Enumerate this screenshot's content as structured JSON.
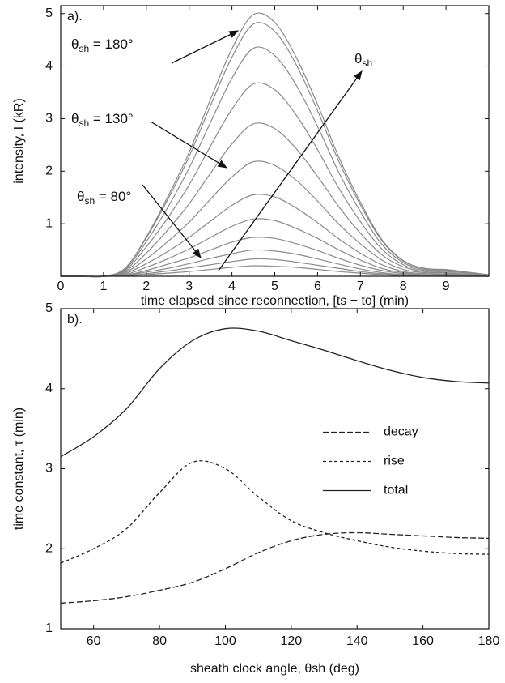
{
  "chart_data": [
    {
      "type": "line",
      "panel_label": "a).",
      "xlabel": "time elapsed since reconnection, [ts − to]    (min)",
      "ylabel": "intensity, I  (kR)",
      "x": [
        0,
        0.5,
        1,
        1.5,
        2,
        2.5,
        3,
        3.5,
        4,
        4.5,
        5,
        5.5,
        6,
        6.5,
        7,
        7.5,
        8,
        8.5,
        9,
        9.5,
        10
      ],
      "xlim": [
        0,
        10
      ],
      "xticks": [
        0,
        1,
        2,
        3,
        4,
        5,
        6,
        7,
        8,
        9
      ],
      "ylim": [
        0,
        5.15
      ],
      "yticks": [
        1,
        2,
        3,
        4,
        5
      ],
      "annotations": [
        {
          "symbol": "θ",
          "subscript": "sh",
          "text": " = 180°"
        },
        {
          "symbol": "θ",
          "subscript": "sh",
          "text": " = 130°"
        },
        {
          "symbol": "θ",
          "subscript": "sh",
          "text": " = 80°"
        },
        {
          "symbol": "θ",
          "subscript": "sh"
        }
      ],
      "series": [
        {
          "color": "#8a8a8a",
          "values": [
            0,
            0,
            0,
            0.15,
            0.75,
            1.51,
            2.36,
            3.37,
            4.33,
            4.98,
            4.83,
            4.17,
            3.27,
            2.26,
            1.41,
            0.7,
            0.3,
            0.15,
            0.13,
            0.08,
            0.03
          ]
        },
        {
          "color": "#8a8a8a",
          "values": [
            0,
            0,
            0,
            0.15,
            0.73,
            1.46,
            2.28,
            3.25,
            4.17,
            4.8,
            4.66,
            4.03,
            3.15,
            2.18,
            1.36,
            0.68,
            0.29,
            0.15,
            0.12,
            0.07,
            0.02
          ]
        },
        {
          "color": "#8a8a8a",
          "values": [
            0,
            0,
            0,
            0.13,
            0.66,
            1.31,
            2.06,
            2.93,
            3.77,
            4.34,
            4.2,
            3.64,
            2.85,
            1.97,
            1.23,
            0.61,
            0.26,
            0.13,
            0.11,
            0.07,
            0.02
          ]
        },
        {
          "color": "#8a8a8a",
          "values": [
            0,
            0,
            0,
            0.11,
            0.56,
            1.11,
            1.74,
            2.48,
            3.18,
            3.66,
            3.55,
            3.07,
            2.41,
            1.67,
            1.04,
            0.52,
            0.22,
            0.11,
            0.09,
            0.06,
            0.02
          ]
        },
        {
          "color": "#8a8a8a",
          "values": [
            0,
            0,
            0,
            0.09,
            0.44,
            0.88,
            1.38,
            1.96,
            2.52,
            2.9,
            2.81,
            2.43,
            1.9,
            1.32,
            0.82,
            0.41,
            0.18,
            0.09,
            0.07,
            0.04,
            0.01
          ]
        },
        {
          "color": "#8a8a8a",
          "values": [
            0,
            0,
            0,
            0.07,
            0.33,
            0.66,
            1.03,
            1.47,
            1.89,
            2.18,
            2.11,
            1.83,
            1.43,
            0.99,
            0.62,
            0.31,
            0.13,
            0.07,
            0.06,
            0.03,
            0.01
          ]
        },
        {
          "color": "#8a8a8a",
          "values": [
            0,
            0,
            0,
            0.05,
            0.24,
            0.47,
            0.74,
            1.05,
            1.35,
            1.55,
            1.51,
            1.3,
            1.02,
            0.71,
            0.44,
            0.22,
            0.09,
            0.05,
            0.04,
            0.02,
            0.01
          ]
        },
        {
          "color": "#8a8a8a",
          "values": [
            0,
            0,
            0,
            0.03,
            0.17,
            0.33,
            0.52,
            0.74,
            0.95,
            1.09,
            1.06,
            0.91,
            0.72,
            0.5,
            0.31,
            0.15,
            0.07,
            0.03,
            0.03,
            0.02,
            0.01
          ]
        },
        {
          "color": "#8a8a8a",
          "values": [
            0,
            0,
            0,
            0.02,
            0.11,
            0.23,
            0.35,
            0.5,
            0.65,
            0.74,
            0.72,
            0.62,
            0.49,
            0.34,
            0.21,
            0.11,
            0.05,
            0.02,
            0.02,
            0.01,
            0
          ]
        },
        {
          "color": "#8a8a8a",
          "values": [
            0,
            0,
            0,
            0.02,
            0.08,
            0.15,
            0.24,
            0.34,
            0.43,
            0.5,
            0.48,
            0.42,
            0.33,
            0.23,
            0.14,
            0.07,
            0.03,
            0.02,
            0.01,
            0.01,
            0
          ]
        },
        {
          "color": "#8a8a8a",
          "values": [
            0,
            0,
            0,
            0.01,
            0.05,
            0.1,
            0.16,
            0.22,
            0.28,
            0.33,
            0.32,
            0.27,
            0.21,
            0.15,
            0.09,
            0.05,
            0.02,
            0.01,
            0.01,
            0,
            0
          ]
        },
        {
          "color": "#8a8a8a",
          "values": [
            0,
            0,
            0,
            0.01,
            0.03,
            0.06,
            0.09,
            0.13,
            0.17,
            0.2,
            0.19,
            0.17,
            0.13,
            0.09,
            0.06,
            0.03,
            0.01,
            0.01,
            0,
            0,
            0
          ]
        }
      ]
    },
    {
      "type": "line",
      "panel_label": "b).",
      "xlabel": "sheath clock angle, θsh      (deg)",
      "ylabel": "time constant, τ  (min)",
      "x": [
        50,
        60,
        70,
        80,
        90,
        100,
        110,
        120,
        130,
        140,
        150,
        160,
        170,
        180
      ],
      "xlim": [
        50,
        180
      ],
      "xticks": [
        60,
        80,
        100,
        120,
        140,
        160,
        180
      ],
      "ylim": [
        1,
        5
      ],
      "yticks": [
        1,
        2,
        3,
        4,
        5
      ],
      "legend": "right",
      "series": [
        {
          "name": "decay",
          "color": "#222222",
          "dash": "7 3",
          "values": [
            1.32,
            1.35,
            1.4,
            1.48,
            1.58,
            1.75,
            1.95,
            2.1,
            2.18,
            2.2,
            2.18,
            2.16,
            2.14,
            2.13
          ]
        },
        {
          "name": "rise",
          "color": "#222222",
          "dash": "4 3",
          "values": [
            1.82,
            2.0,
            2.25,
            2.7,
            3.08,
            3.0,
            2.65,
            2.35,
            2.2,
            2.1,
            2.02,
            1.97,
            1.94,
            1.93
          ]
        },
        {
          "name": "total",
          "color": "#222222",
          "values": [
            3.15,
            3.4,
            3.75,
            4.25,
            4.6,
            4.75,
            4.72,
            4.6,
            4.48,
            4.35,
            4.23,
            4.14,
            4.09,
            4.07
          ]
        }
      ]
    }
  ]
}
